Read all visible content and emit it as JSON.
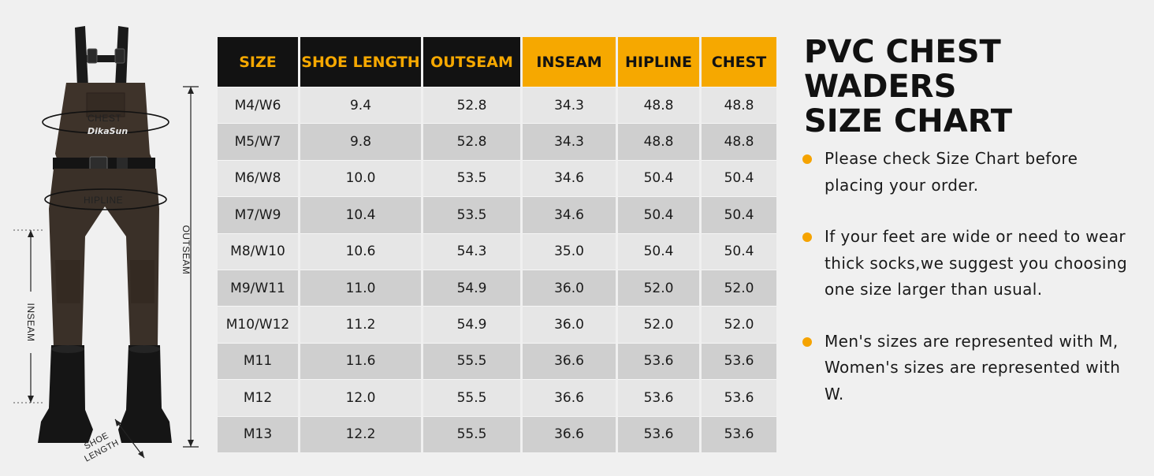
{
  "figure": {
    "labels": {
      "chest": "CHEST",
      "hipline": "HIPLINE",
      "outseam": "OUTSEAM",
      "inseam": "INSEAM",
      "shoe_line1": "SHOE",
      "shoe_line2": "LENGTH"
    },
    "brand": "DikaSun"
  },
  "table": {
    "headers": [
      "SIZE",
      "SHOE LENGTH",
      "OUTSEAM",
      "INSEAM",
      "HIPLINE",
      "CHEST"
    ],
    "rows": [
      [
        "M4/W6",
        "9.4",
        "52.8",
        "34.3",
        "48.8",
        "48.8"
      ],
      [
        "M5/W7",
        "9.8",
        "52.8",
        "34.3",
        "48.8",
        "48.8"
      ],
      [
        "M6/W8",
        "10.0",
        "53.5",
        "34.6",
        "50.4",
        "50.4"
      ],
      [
        "M7/W9",
        "10.4",
        "53.5",
        "34.6",
        "50.4",
        "50.4"
      ],
      [
        "M8/W10",
        "10.6",
        "54.3",
        "35.0",
        "50.4",
        "50.4"
      ],
      [
        "M9/W11",
        "11.0",
        "54.9",
        "36.0",
        "52.0",
        "52.0"
      ],
      [
        "M10/W12",
        "11.2",
        "54.9",
        "36.0",
        "52.0",
        "52.0"
      ],
      [
        "M11",
        "11.6",
        "55.5",
        "36.6",
        "53.6",
        "53.6"
      ],
      [
        "M12",
        "12.0",
        "55.5",
        "36.6",
        "53.6",
        "53.6"
      ],
      [
        "M13",
        "12.2",
        "55.5",
        "36.6",
        "53.6",
        "53.6"
      ]
    ]
  },
  "title": {
    "line1": "PVC CHEST WADERS",
    "line2": "SIZE CHART"
  },
  "notes": [
    "Please check Size Chart before placing your order.",
    "If your feet are wide or need to wear thick socks,we suggest you choosing one size larger than usual.",
    "Men's sizes are represented with M, Women's sizes are represented with W."
  ],
  "colors": {
    "accent": "#f6a800",
    "header_dark": "#121212",
    "row_light": "#e6e6e6",
    "row_dark": "#cfcfcf",
    "wader": "#3e332a",
    "boot": "#151515"
  }
}
